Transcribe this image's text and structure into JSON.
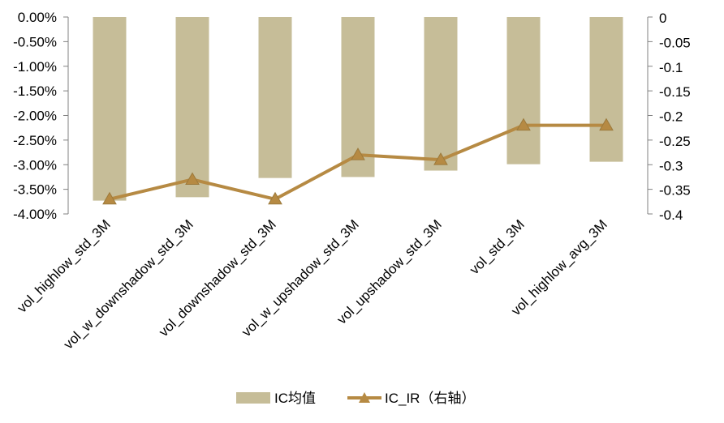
{
  "chart_data": {
    "type": "bar",
    "categories": [
      "vol_highlow_std_3M",
      "vol_w_downshadow_std_3M",
      "vol_downshadow_std_3M",
      "vol_w_upshadow_std_3M",
      "vol_upshadow_std_3M",
      "vol_std_3M",
      "vol_highlow_avg_3M"
    ],
    "series": [
      {
        "name": "IC均值",
        "type": "bar",
        "axis": "left",
        "color": "#c6bd98",
        "values": [
          -3.73,
          -3.66,
          -3.27,
          -3.25,
          -3.12,
          -2.99,
          -2.94
        ]
      },
      {
        "name": "IC_IR（右轴）",
        "type": "line",
        "axis": "right",
        "color": "#b68a43",
        "marker": "triangle",
        "values": [
          -0.37,
          -0.33,
          -0.37,
          -0.28,
          -0.29,
          -0.22,
          -0.22
        ]
      }
    ],
    "y_left": {
      "ylim": [
        -4.0,
        0.0
      ],
      "ticks": [
        0,
        -0.5,
        -1,
        -1.5,
        -2,
        -2.5,
        -3,
        -3.5,
        -4
      ],
      "tick_labels": [
        "0.00%",
        "-0.50%",
        "-1.00%",
        "-1.50%",
        "-2.00%",
        "-2.50%",
        "-3.00%",
        "-3.50%",
        "-4.00%"
      ]
    },
    "y_right": {
      "ylim": [
        -0.4,
        0
      ],
      "ticks": [
        0,
        -0.05,
        -0.1,
        -0.15,
        -0.2,
        -0.25,
        -0.3,
        -0.35,
        -0.4
      ],
      "tick_labels": [
        "0",
        "-0.05",
        "-0.1",
        "-0.15",
        "-0.2",
        "-0.25",
        "-0.3",
        "-0.35",
        "-0.4"
      ]
    },
    "legend_position": "bottom",
    "grid": false
  }
}
